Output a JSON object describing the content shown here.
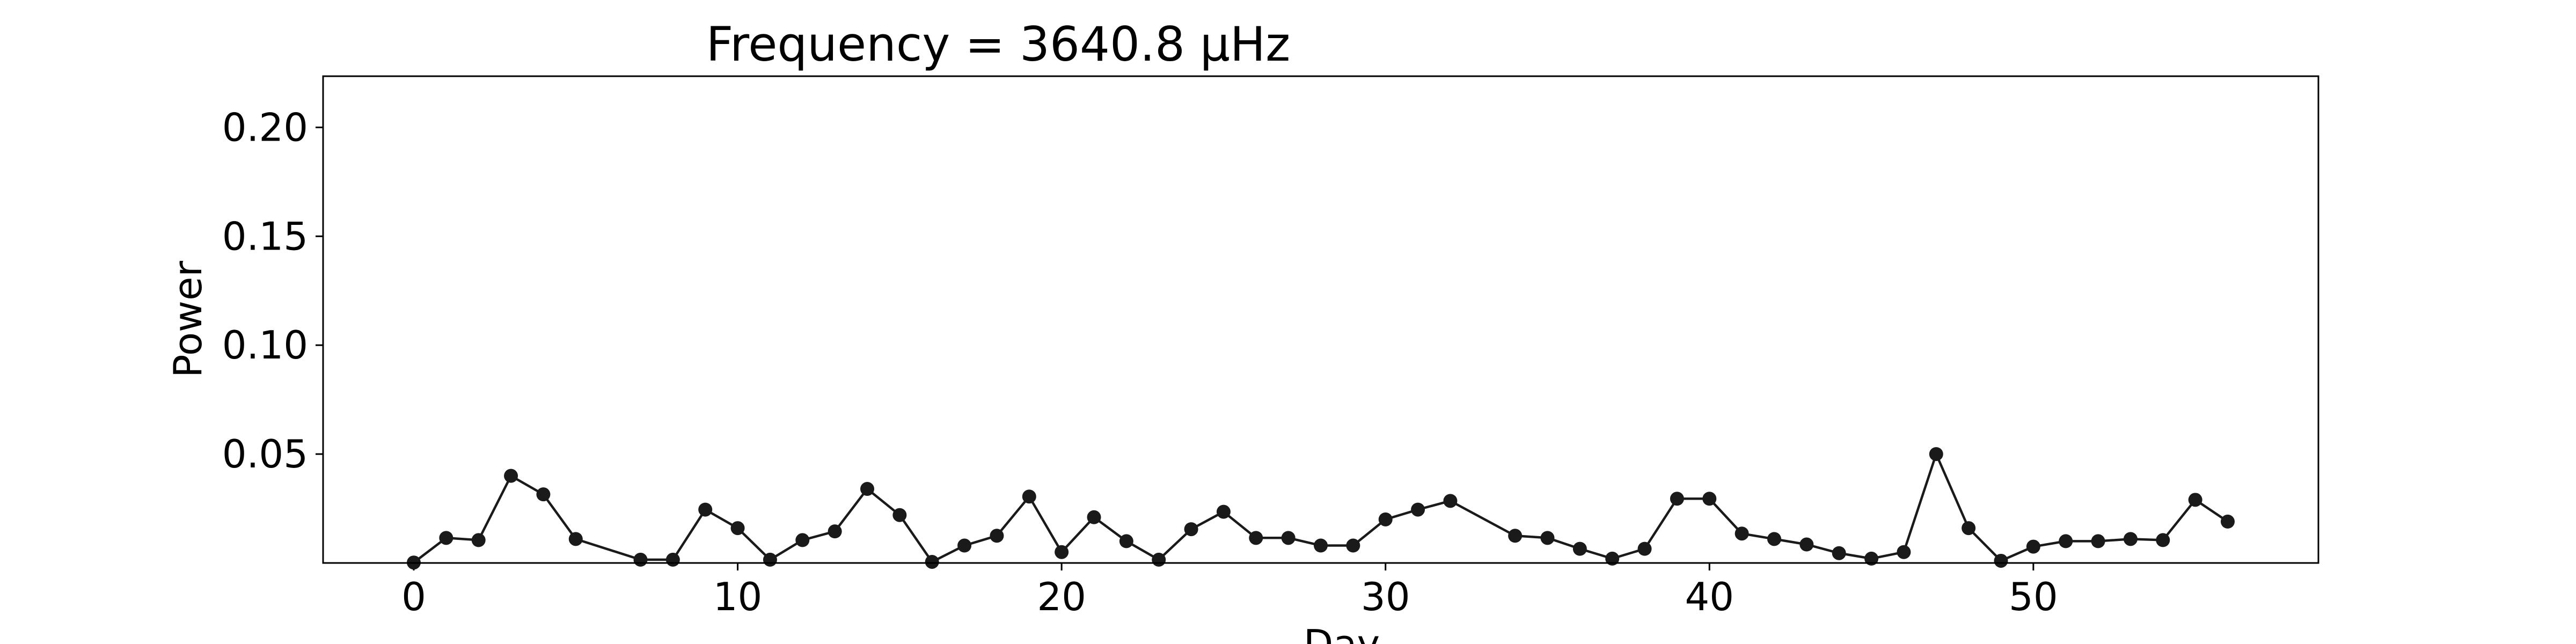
{
  "chart_data": {
    "type": "line",
    "title": "Frequency = 3640.8 μHz",
    "xlabel": "Day",
    "ylabel": "Power",
    "xlim": [
      -2.8,
      58.8
    ],
    "ylim": [
      0,
      0.2235
    ],
    "xticks": [
      0,
      10,
      20,
      30,
      40,
      50
    ],
    "yticks": [
      0.05,
      0.1,
      0.15,
      0.2
    ],
    "ytick_labels": [
      "0.05",
      "0.10",
      "0.15",
      "0.20"
    ],
    "grid": false,
    "legend": "none",
    "line_color": "#1a1a1a",
    "marker": "circle",
    "series": [
      {
        "x": [
          0,
          1,
          2,
          3,
          4,
          5,
          7,
          8,
          9,
          10,
          11,
          12,
          13,
          14,
          15,
          16,
          17,
          18,
          19,
          20,
          21,
          22,
          23,
          24,
          25,
          26,
          27,
          28,
          29,
          30,
          31,
          32,
          34,
          35,
          36,
          37,
          38,
          39,
          40,
          41,
          42,
          43,
          44,
          45,
          46,
          47,
          48,
          49,
          50,
          51,
          52,
          53,
          54,
          55,
          56
        ],
        "y": [
          0.0002,
          0.0115,
          0.0105,
          0.04,
          0.0315,
          0.011,
          0.0015,
          0.0015,
          0.0245,
          0.016,
          0.0015,
          0.0105,
          0.0145,
          0.034,
          0.022,
          0.0005,
          0.008,
          0.0125,
          0.0305,
          0.005,
          0.021,
          0.01,
          0.0015,
          0.0155,
          0.0235,
          0.0115,
          0.0115,
          0.008,
          0.008,
          0.02,
          0.0245,
          0.0285,
          0.0125,
          0.0115,
          0.0065,
          0.002,
          0.0065,
          0.0295,
          0.0295,
          0.0135,
          0.011,
          0.0085,
          0.0045,
          0.002,
          0.005,
          0.05,
          0.016,
          0.001,
          0.0075,
          0.01,
          0.01,
          0.011,
          0.0105,
          0.029,
          0.019
        ]
      }
    ]
  }
}
